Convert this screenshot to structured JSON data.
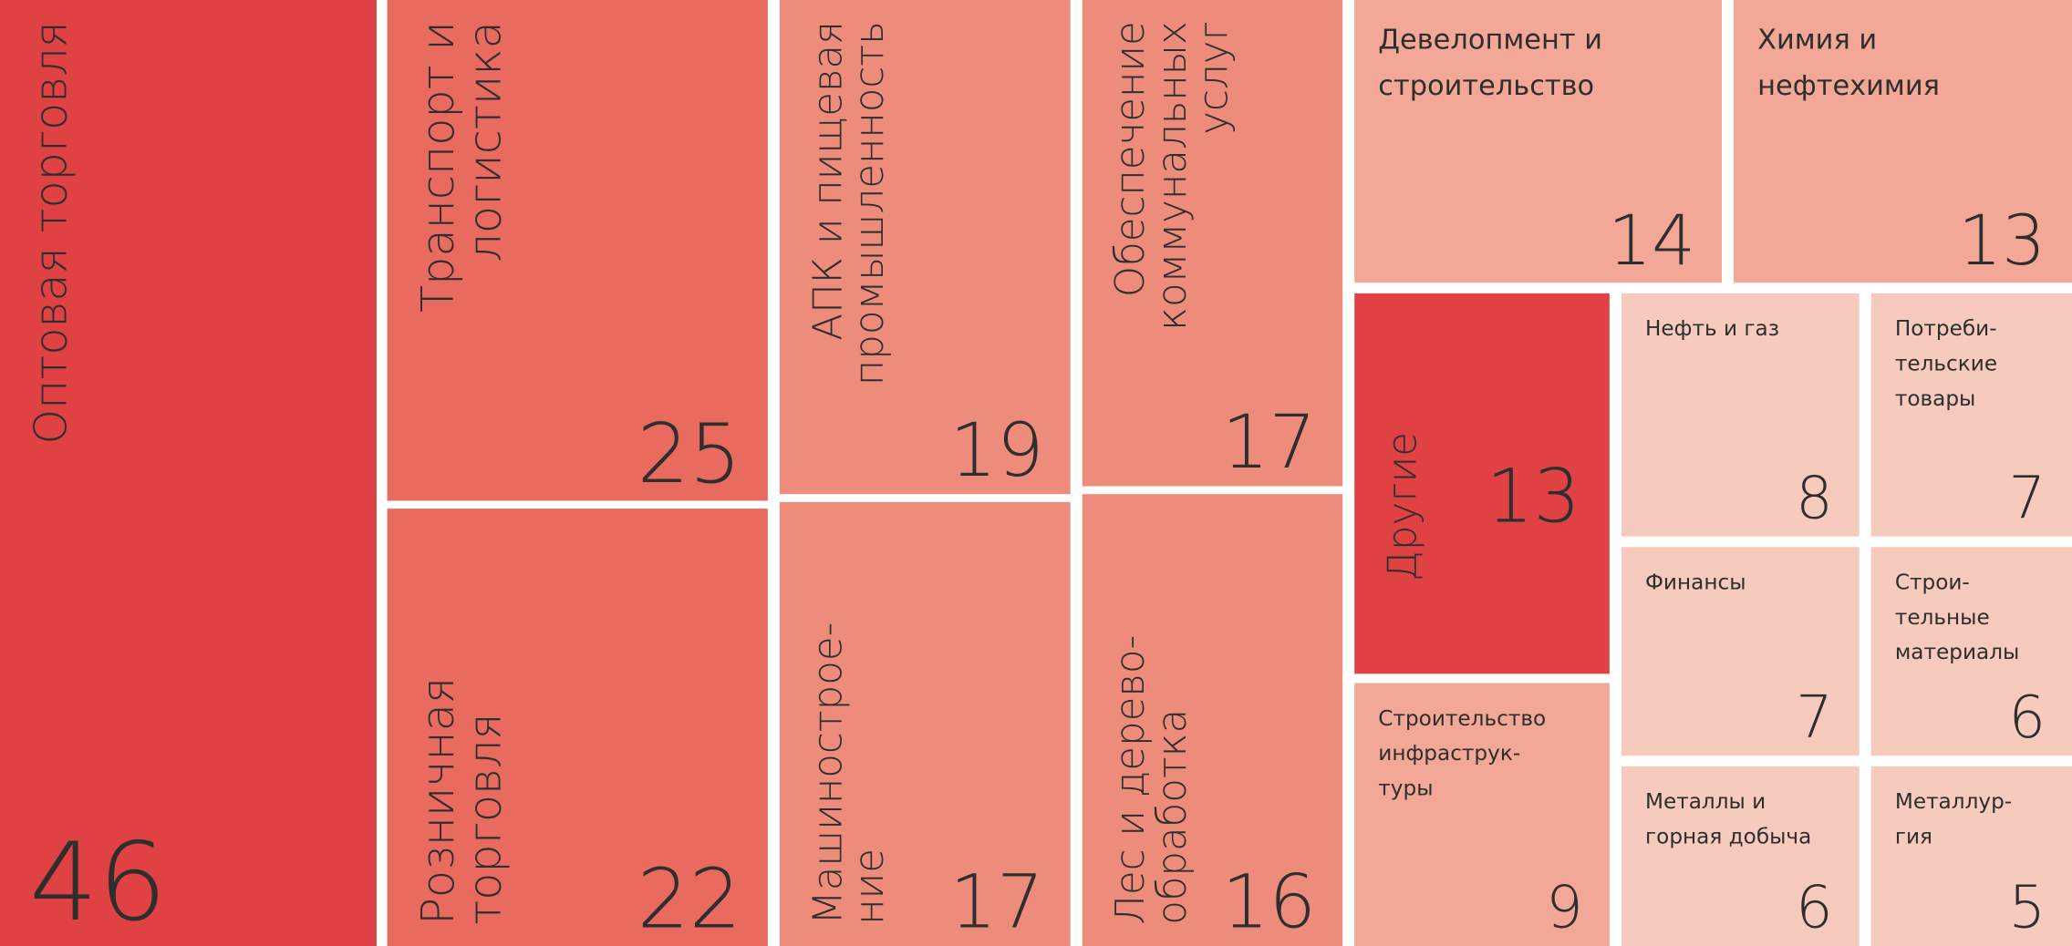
{
  "chart_data": {
    "type": "treemap",
    "categories": [
      [
        "Оптовая торговля"
      ],
      [
        "Транспорт и",
        "логистика"
      ],
      [
        "Розничная",
        "торговля"
      ],
      [
        "АПК и пищевая",
        "промышленность"
      ],
      [
        "Машинострое-",
        "ние"
      ],
      [
        "Обеспечение",
        "коммунальных",
        "услуг"
      ],
      [
        "Лес и дерево-",
        "обработка"
      ],
      [
        "Девелопмент и",
        "строительство"
      ],
      [
        "Химия и",
        "нефтехимия"
      ],
      [
        "Другие"
      ],
      [
        "Строительство",
        "инфраструк-",
        "туры"
      ],
      [
        "Нефть и газ"
      ],
      [
        "Потреби-",
        "тельские",
        "товары"
      ],
      [
        "Финансы"
      ],
      [
        "Строи-",
        "тельные",
        "материалы"
      ],
      [
        "Металлы и",
        "горная добыча"
      ],
      [
        "Металлур-",
        "гия"
      ]
    ],
    "values": [
      46,
      25,
      22,
      19,
      17,
      17,
      16,
      14,
      13,
      13,
      9,
      8,
      7,
      7,
      6,
      6,
      5
    ],
    "colors": [
      "#e04244",
      "#e96b5f",
      "#e96b5f",
      "#ee8c7c",
      "#ee8c7c",
      "#ee8c7c",
      "#ee8c7c",
      "#f2a797",
      "#f2a797",
      "#e04244",
      "#f2a797",
      "#f6cabd",
      "#f6cabd",
      "#f6cabd",
      "#f6cabd",
      "#f6cabd",
      "#f6cabd"
    ]
  }
}
